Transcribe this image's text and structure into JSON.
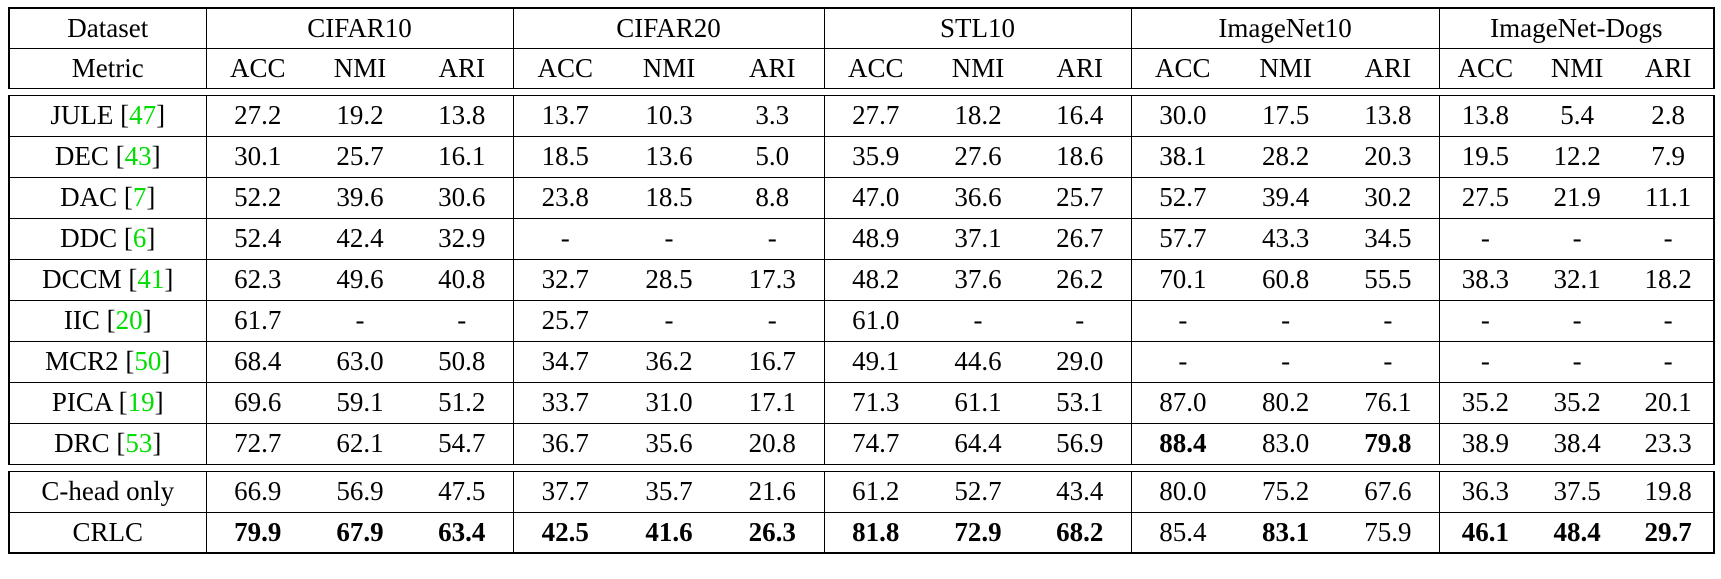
{
  "colors": {
    "citation_green": "#00dd00",
    "text": "#000000",
    "background": "#ffffff",
    "rule": "#000000"
  },
  "table": {
    "corner": {
      "dataset_label": "Dataset",
      "metric_label": "Metric"
    },
    "datasets": [
      "CIFAR10",
      "CIFAR20",
      "STL10",
      "ImageNet10",
      "ImageNet-Dogs"
    ],
    "metrics": [
      "ACC",
      "NMI",
      "ARI"
    ],
    "dash": "-",
    "sections": [
      {
        "name": "prior-methods",
        "rows": [
          {
            "method": "JULE",
            "cite": "47",
            "values": [
              "27.2",
              "19.2",
              "13.8",
              "13.7",
              "10.3",
              "3.3",
              "27.7",
              "18.2",
              "16.4",
              "30.0",
              "17.5",
              "13.8",
              "13.8",
              "5.4",
              "2.8"
            ],
            "bold": []
          },
          {
            "method": "DEC",
            "cite": "43",
            "values": [
              "30.1",
              "25.7",
              "16.1",
              "18.5",
              "13.6",
              "5.0",
              "35.9",
              "27.6",
              "18.6",
              "38.1",
              "28.2",
              "20.3",
              "19.5",
              "12.2",
              "7.9"
            ],
            "bold": []
          },
          {
            "method": "DAC",
            "cite": "7",
            "values": [
              "52.2",
              "39.6",
              "30.6",
              "23.8",
              "18.5",
              "8.8",
              "47.0",
              "36.6",
              "25.7",
              "52.7",
              "39.4",
              "30.2",
              "27.5",
              "21.9",
              "11.1"
            ],
            "bold": []
          },
          {
            "method": "DDC",
            "cite": "6",
            "values": [
              "52.4",
              "42.4",
              "32.9",
              "-",
              "-",
              "-",
              "48.9",
              "37.1",
              "26.7",
              "57.7",
              "43.3",
              "34.5",
              "-",
              "-",
              "-"
            ],
            "bold": []
          },
          {
            "method": "DCCM",
            "cite": "41",
            "values": [
              "62.3",
              "49.6",
              "40.8",
              "32.7",
              "28.5",
              "17.3",
              "48.2",
              "37.6",
              "26.2",
              "70.1",
              "60.8",
              "55.5",
              "38.3",
              "32.1",
              "18.2"
            ],
            "bold": []
          },
          {
            "method": "IIC",
            "cite": "20",
            "values": [
              "61.7",
              "-",
              "-",
              "25.7",
              "-",
              "-",
              "61.0",
              "-",
              "-",
              "-",
              "-",
              "-",
              "-",
              "-",
              "-"
            ],
            "bold": []
          },
          {
            "method": "MCR2",
            "cite": "50",
            "values": [
              "68.4",
              "63.0",
              "50.8",
              "34.7",
              "36.2",
              "16.7",
              "49.1",
              "44.6",
              "29.0",
              "-",
              "-",
              "-",
              "-",
              "-",
              "-"
            ],
            "bold": []
          },
          {
            "method": "PICA",
            "cite": "19",
            "values": [
              "69.6",
              "59.1",
              "51.2",
              "33.7",
              "31.0",
              "17.1",
              "71.3",
              "61.1",
              "53.1",
              "87.0",
              "80.2",
              "76.1",
              "35.2",
              "35.2",
              "20.1"
            ],
            "bold": []
          },
          {
            "method": "DRC",
            "cite": "53",
            "values": [
              "72.7",
              "62.1",
              "54.7",
              "36.7",
              "35.6",
              "20.8",
              "74.7",
              "64.4",
              "56.9",
              "88.4",
              "83.0",
              "79.8",
              "38.9",
              "38.4",
              "23.3"
            ],
            "bold": [
              9,
              11
            ]
          }
        ]
      },
      {
        "name": "ours",
        "rows": [
          {
            "method": "C-head only",
            "cite": null,
            "values": [
              "66.9",
              "56.9",
              "47.5",
              "37.7",
              "35.7",
              "21.6",
              "61.2",
              "52.7",
              "43.4",
              "80.0",
              "75.2",
              "67.6",
              "36.3",
              "37.5",
              "19.8"
            ],
            "bold": []
          },
          {
            "method": "CRLC",
            "cite": null,
            "values": [
              "79.9",
              "67.9",
              "63.4",
              "42.5",
              "41.6",
              "26.3",
              "81.8",
              "72.9",
              "68.2",
              "85.4",
              "83.1",
              "75.9",
              "46.1",
              "48.4",
              "29.7"
            ],
            "bold": [
              0,
              1,
              2,
              3,
              4,
              5,
              6,
              7,
              8,
              10,
              12,
              13,
              14
            ]
          }
        ]
      }
    ]
  }
}
